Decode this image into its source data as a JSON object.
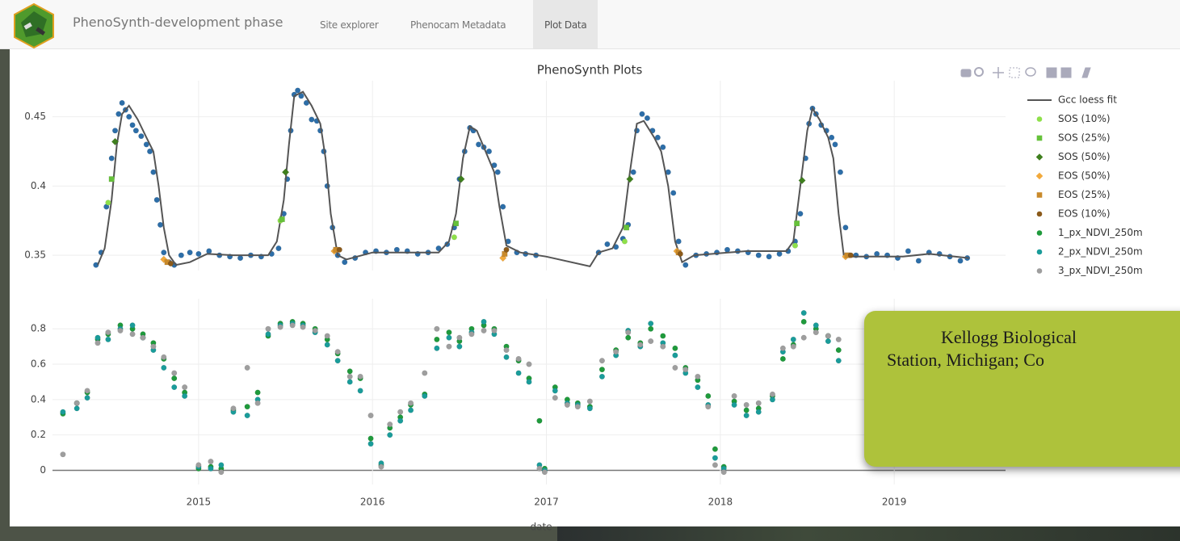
{
  "navbar": {
    "brand": "PhenoSynth-development phase",
    "tabs": [
      "Site explorer",
      "Phenocam Metadata",
      "Plot Data"
    ],
    "active": 2
  },
  "callout": {
    "lines": [
      "Kellogg Biological",
      "Station, Michigan; Co"
    ]
  },
  "chart_data": [
    {
      "type": "scatter",
      "title": "PhenoSynth Plots",
      "xlim": [
        2014.16,
        2019.64
      ],
      "xticks": [
        2015,
        2016,
        2017,
        2018,
        2019
      ],
      "show_xtick_labels": false,
      "ylim": [
        0.339,
        0.476
      ],
      "yticks": [
        0.35,
        0.4,
        0.45
      ],
      "grid": true,
      "series": [
        {
          "mode": "markers",
          "marker": "circle",
          "color": "#2d6ea8",
          "x": [
            2014.41,
            2014.44,
            2014.47,
            2014.5,
            2014.52,
            2014.54,
            2014.56,
            2014.58,
            2014.6,
            2014.62,
            2014.64,
            2014.67,
            2014.7,
            2014.72,
            2014.74,
            2014.76,
            2014.78,
            2014.8,
            2014.83,
            2014.86,
            2014.9,
            2014.95,
            2015.0,
            2015.06,
            2015.12,
            2015.18,
            2015.24,
            2015.3,
            2015.36,
            2015.42,
            2015.46,
            2015.49,
            2015.51,
            2015.53,
            2015.55,
            2015.57,
            2015.59,
            2015.62,
            2015.65,
            2015.68,
            2015.7,
            2015.72,
            2015.74,
            2015.77,
            2015.8,
            2015.84,
            2015.9,
            2015.96,
            2016.02,
            2016.08,
            2016.14,
            2016.2,
            2016.26,
            2016.32,
            2016.38,
            2016.43,
            2016.47,
            2016.5,
            2016.53,
            2016.56,
            2016.58,
            2016.61,
            2016.64,
            2016.67,
            2016.7,
            2016.72,
            2016.75,
            2016.78,
            2016.83,
            2016.88,
            2016.94,
            2017.3,
            2017.35,
            2017.4,
            2017.44,
            2017.47,
            2017.5,
            2017.52,
            2017.55,
            2017.58,
            2017.61,
            2017.64,
            2017.67,
            2017.7,
            2017.73,
            2017.76,
            2017.8,
            2017.86,
            2017.92,
            2017.98,
            2018.04,
            2018.1,
            2018.16,
            2018.22,
            2018.28,
            2018.34,
            2018.39,
            2018.43,
            2018.46,
            2018.49,
            2018.51,
            2018.53,
            2018.55,
            2018.58,
            2018.61,
            2018.64,
            2018.66,
            2018.69,
            2018.72,
            2018.78,
            2018.84,
            2018.9,
            2018.96,
            2019.02,
            2019.08,
            2019.14,
            2019.2,
            2019.26,
            2019.32,
            2019.38,
            2019.42
          ],
          "values": [
            0.343,
            0.352,
            0.385,
            0.42,
            0.44,
            0.452,
            0.46,
            0.455,
            0.45,
            0.444,
            0.44,
            0.436,
            0.43,
            0.425,
            0.41,
            0.39,
            0.372,
            0.352,
            0.345,
            0.343,
            0.35,
            0.352,
            0.351,
            0.353,
            0.35,
            0.349,
            0.348,
            0.35,
            0.349,
            0.351,
            0.355,
            0.38,
            0.405,
            0.44,
            0.466,
            0.469,
            0.465,
            0.46,
            0.448,
            0.447,
            0.44,
            0.425,
            0.4,
            0.37,
            0.35,
            0.345,
            0.348,
            0.352,
            0.353,
            0.352,
            0.354,
            0.353,
            0.351,
            0.352,
            0.355,
            0.358,
            0.37,
            0.405,
            0.425,
            0.442,
            0.44,
            0.43,
            0.428,
            0.425,
            0.415,
            0.41,
            0.385,
            0.36,
            0.352,
            0.351,
            0.35,
            0.352,
            0.358,
            0.356,
            0.362,
            0.372,
            0.41,
            0.44,
            0.452,
            0.449,
            0.44,
            0.435,
            0.428,
            0.41,
            0.395,
            0.36,
            0.343,
            0.35,
            0.351,
            0.352,
            0.354,
            0.353,
            0.352,
            0.35,
            0.349,
            0.351,
            0.353,
            0.36,
            0.38,
            0.42,
            0.445,
            0.456,
            0.452,
            0.444,
            0.44,
            0.435,
            0.43,
            0.41,
            0.37,
            0.35,
            0.349,
            0.351,
            0.35,
            0.348,
            0.353,
            0.346,
            0.352,
            0.351,
            0.349,
            0.346,
            0.348
          ]
        },
        {
          "name": "Gcc loess fit",
          "mode": "lines",
          "color": "#555555",
          "x": [
            2014.42,
            2014.46,
            2014.5,
            2014.53,
            2014.56,
            2014.6,
            2014.65,
            2014.7,
            2014.74,
            2014.77,
            2014.8,
            2014.83,
            2014.87,
            2014.95,
            2015.05,
            2015.2,
            2015.4,
            2015.45,
            2015.49,
            2015.52,
            2015.55,
            2015.6,
            2015.65,
            2015.7,
            2015.73,
            2015.76,
            2015.8,
            2015.85,
            2016.0,
            2016.38,
            2016.44,
            2016.48,
            2016.52,
            2016.56,
            2016.6,
            2016.65,
            2016.7,
            2016.73,
            2016.77,
            2016.85,
            2017.0,
            2017.25,
            2017.3,
            2017.38,
            2017.44,
            2017.48,
            2017.52,
            2017.56,
            2017.62,
            2017.66,
            2017.7,
            2017.74,
            2017.78,
            2017.85,
            2018.15,
            2018.38,
            2018.42,
            2018.46,
            2018.5,
            2018.53,
            2018.57,
            2018.62,
            2018.65,
            2018.68,
            2018.71,
            2018.75,
            2019.05,
            2019.2,
            2019.43
          ],
          "values": [
            0.343,
            0.355,
            0.39,
            0.43,
            0.452,
            0.458,
            0.448,
            0.435,
            0.425,
            0.4,
            0.37,
            0.35,
            0.343,
            0.345,
            0.351,
            0.35,
            0.35,
            0.36,
            0.39,
            0.43,
            0.465,
            0.468,
            0.458,
            0.445,
            0.42,
            0.38,
            0.35,
            0.347,
            0.352,
            0.352,
            0.36,
            0.38,
            0.42,
            0.443,
            0.44,
            0.425,
            0.41,
            0.385,
            0.357,
            0.352,
            0.349,
            0.342,
            0.352,
            0.355,
            0.37,
            0.41,
            0.445,
            0.447,
            0.435,
            0.425,
            0.4,
            0.36,
            0.345,
            0.35,
            0.353,
            0.353,
            0.36,
            0.4,
            0.44,
            0.456,
            0.448,
            0.435,
            0.42,
            0.38,
            0.35,
            0.349,
            0.349,
            0.351,
            0.348
          ]
        },
        {
          "name": "SOS (10%)",
          "mode": "markers",
          "marker": "circle",
          "color": "#8ee04a",
          "x": [
            2014.48,
            2015.47,
            2016.47,
            2017.45,
            2018.43
          ],
          "values": [
            0.388,
            0.375,
            0.363,
            0.36,
            0.357
          ]
        },
        {
          "name": "SOS (25%)",
          "mode": "markers",
          "marker": "square",
          "color": "#66c23a",
          "x": [
            2014.5,
            2015.48,
            2016.48,
            2017.46,
            2018.44
          ],
          "values": [
            0.405,
            0.376,
            0.373,
            0.37,
            0.373
          ]
        },
        {
          "name": "SOS (50%)",
          "mode": "markers",
          "marker": "diamond",
          "color": "#3f7f1e",
          "x": [
            2014.52,
            2015.5,
            2016.51,
            2017.48,
            2018.47
          ],
          "values": [
            0.432,
            0.41,
            0.405,
            0.405,
            0.404
          ]
        },
        {
          "name": "EOS (50%)",
          "mode": "markers",
          "marker": "diamond",
          "color": "#f2a93b",
          "x": [
            2014.8,
            2015.78,
            2016.75,
            2017.75,
            2018.72
          ],
          "values": [
            0.347,
            0.353,
            0.348,
            0.353,
            0.349
          ]
        },
        {
          "name": "EOS (25%)",
          "mode": "markers",
          "marker": "square",
          "color": "#c98a2b",
          "x": [
            2014.82,
            2015.79,
            2016.76,
            2017.76,
            2018.73
          ],
          "values": [
            0.345,
            0.354,
            0.351,
            0.352,
            0.35
          ]
        },
        {
          "name": "EOS (10%)",
          "mode": "markers",
          "marker": "circle",
          "color": "#8b5a1a",
          "x": [
            2014.84,
            2015.81,
            2016.77,
            2017.77,
            2018.75
          ],
          "values": [
            0.344,
            0.354,
            0.354,
            0.351,
            0.35
          ]
        }
      ]
    },
    {
      "type": "scatter",
      "xlabel": "date",
      "xlim": [
        2014.16,
        2019.64
      ],
      "xticks": [
        2015,
        2016,
        2017,
        2018,
        2019
      ],
      "ylim": [
        -0.08,
        0.97
      ],
      "yticks": [
        0,
        0.2,
        0.4,
        0.6,
        0.8
      ],
      "grid": true,
      "zeroline": true,
      "x": [
        2014.22,
        2014.3,
        2014.36,
        2014.42,
        2014.48,
        2014.55,
        2014.62,
        2014.68,
        2014.74,
        2014.8,
        2014.86,
        2014.92,
        2015.0,
        2015.07,
        2015.13,
        2015.2,
        2015.28,
        2015.34,
        2015.4,
        2015.47,
        2015.54,
        2015.6,
        2015.67,
        2015.74,
        2015.8,
        2015.87,
        2015.93,
        2015.99,
        2016.05,
        2016.1,
        2016.16,
        2016.22,
        2016.3,
        2016.37,
        2016.44,
        2016.5,
        2016.57,
        2016.64,
        2016.7,
        2016.77,
        2016.84,
        2016.9,
        2016.96,
        2016.99,
        2017.05,
        2017.12,
        2017.18,
        2017.25,
        2017.32,
        2017.4,
        2017.47,
        2017.54,
        2017.6,
        2017.67,
        2017.74,
        2017.8,
        2017.87,
        2017.93,
        2017.97,
        2018.02,
        2018.08,
        2018.15,
        2018.22,
        2018.3,
        2018.36,
        2018.42,
        2018.48,
        2018.55,
        2018.62,
        2018.68
      ],
      "series": [
        {
          "name": "1_px_NDVI_250m",
          "mode": "markers",
          "marker": "circle",
          "color": "#1f9a3c",
          "values": [
            0.32,
            0.38,
            0.44,
            0.74,
            0.77,
            0.82,
            0.8,
            0.77,
            0.72,
            0.63,
            0.52,
            0.44,
            0.01,
            0.02,
            0.01,
            0.34,
            0.36,
            0.44,
            0.76,
            0.83,
            0.84,
            0.83,
            0.8,
            0.74,
            0.66,
            0.56,
            0.52,
            0.18,
            0.03,
            0.24,
            0.3,
            0.37,
            0.43,
            0.74,
            0.78,
            0.73,
            0.8,
            0.82,
            0.8,
            0.7,
            0.62,
            0.52,
            0.28,
            0.01,
            0.47,
            0.4,
            0.38,
            0.36,
            0.57,
            0.68,
            0.75,
            0.72,
            0.8,
            0.76,
            0.69,
            0.58,
            0.51,
            0.42,
            0.12,
            0.02,
            0.39,
            0.34,
            0.35,
            0.42,
            0.63,
            0.71,
            0.84,
            0.8,
            0.76,
            0.68
          ]
        },
        {
          "name": "2_px_NDVI_250m",
          "mode": "markers",
          "marker": "circle",
          "color": "#1a9c9a",
          "values": [
            0.33,
            0.35,
            0.41,
            0.75,
            0.74,
            0.8,
            0.82,
            0.75,
            0.68,
            0.58,
            0.47,
            0.42,
            0.02,
            0.01,
            0.03,
            0.33,
            0.31,
            0.4,
            0.77,
            0.82,
            0.83,
            0.82,
            0.78,
            0.71,
            0.62,
            0.5,
            0.45,
            0.15,
            0.04,
            0.2,
            0.28,
            0.34,
            0.42,
            0.69,
            0.75,
            0.7,
            0.78,
            0.84,
            0.77,
            0.64,
            0.55,
            0.5,
            0.03,
            0.0,
            0.45,
            0.38,
            0.37,
            0.35,
            0.53,
            0.65,
            0.79,
            0.7,
            0.83,
            0.72,
            0.65,
            0.55,
            0.47,
            0.37,
            0.07,
            0.01,
            0.37,
            0.31,
            0.33,
            0.4,
            0.67,
            0.74,
            0.89,
            0.82,
            0.73,
            0.62
          ]
        },
        {
          "name": "3_px_NDVI_250m",
          "mode": "markers",
          "marker": "circle",
          "color": "#9e9e9e",
          "values": [
            0.09,
            0.38,
            0.45,
            0.72,
            0.78,
            0.79,
            0.77,
            0.75,
            0.7,
            0.64,
            0.55,
            0.47,
            0.03,
            0.05,
            -0.01,
            0.35,
            0.58,
            0.38,
            0.8,
            0.81,
            0.82,
            0.81,
            0.79,
            0.76,
            0.67,
            0.53,
            0.53,
            0.31,
            0.02,
            0.26,
            0.33,
            0.38,
            0.55,
            0.8,
            0.7,
            0.75,
            0.77,
            0.79,
            0.79,
            0.68,
            0.63,
            0.6,
            0.01,
            -0.01,
            0.41,
            0.37,
            0.36,
            0.39,
            0.62,
            0.67,
            0.78,
            0.71,
            0.73,
            0.7,
            0.58,
            0.57,
            0.53,
            0.36,
            0.03,
            -0.01,
            0.42,
            0.37,
            0.38,
            0.43,
            0.69,
            0.7,
            0.75,
            0.78,
            0.76,
            0.74
          ]
        }
      ]
    }
  ]
}
